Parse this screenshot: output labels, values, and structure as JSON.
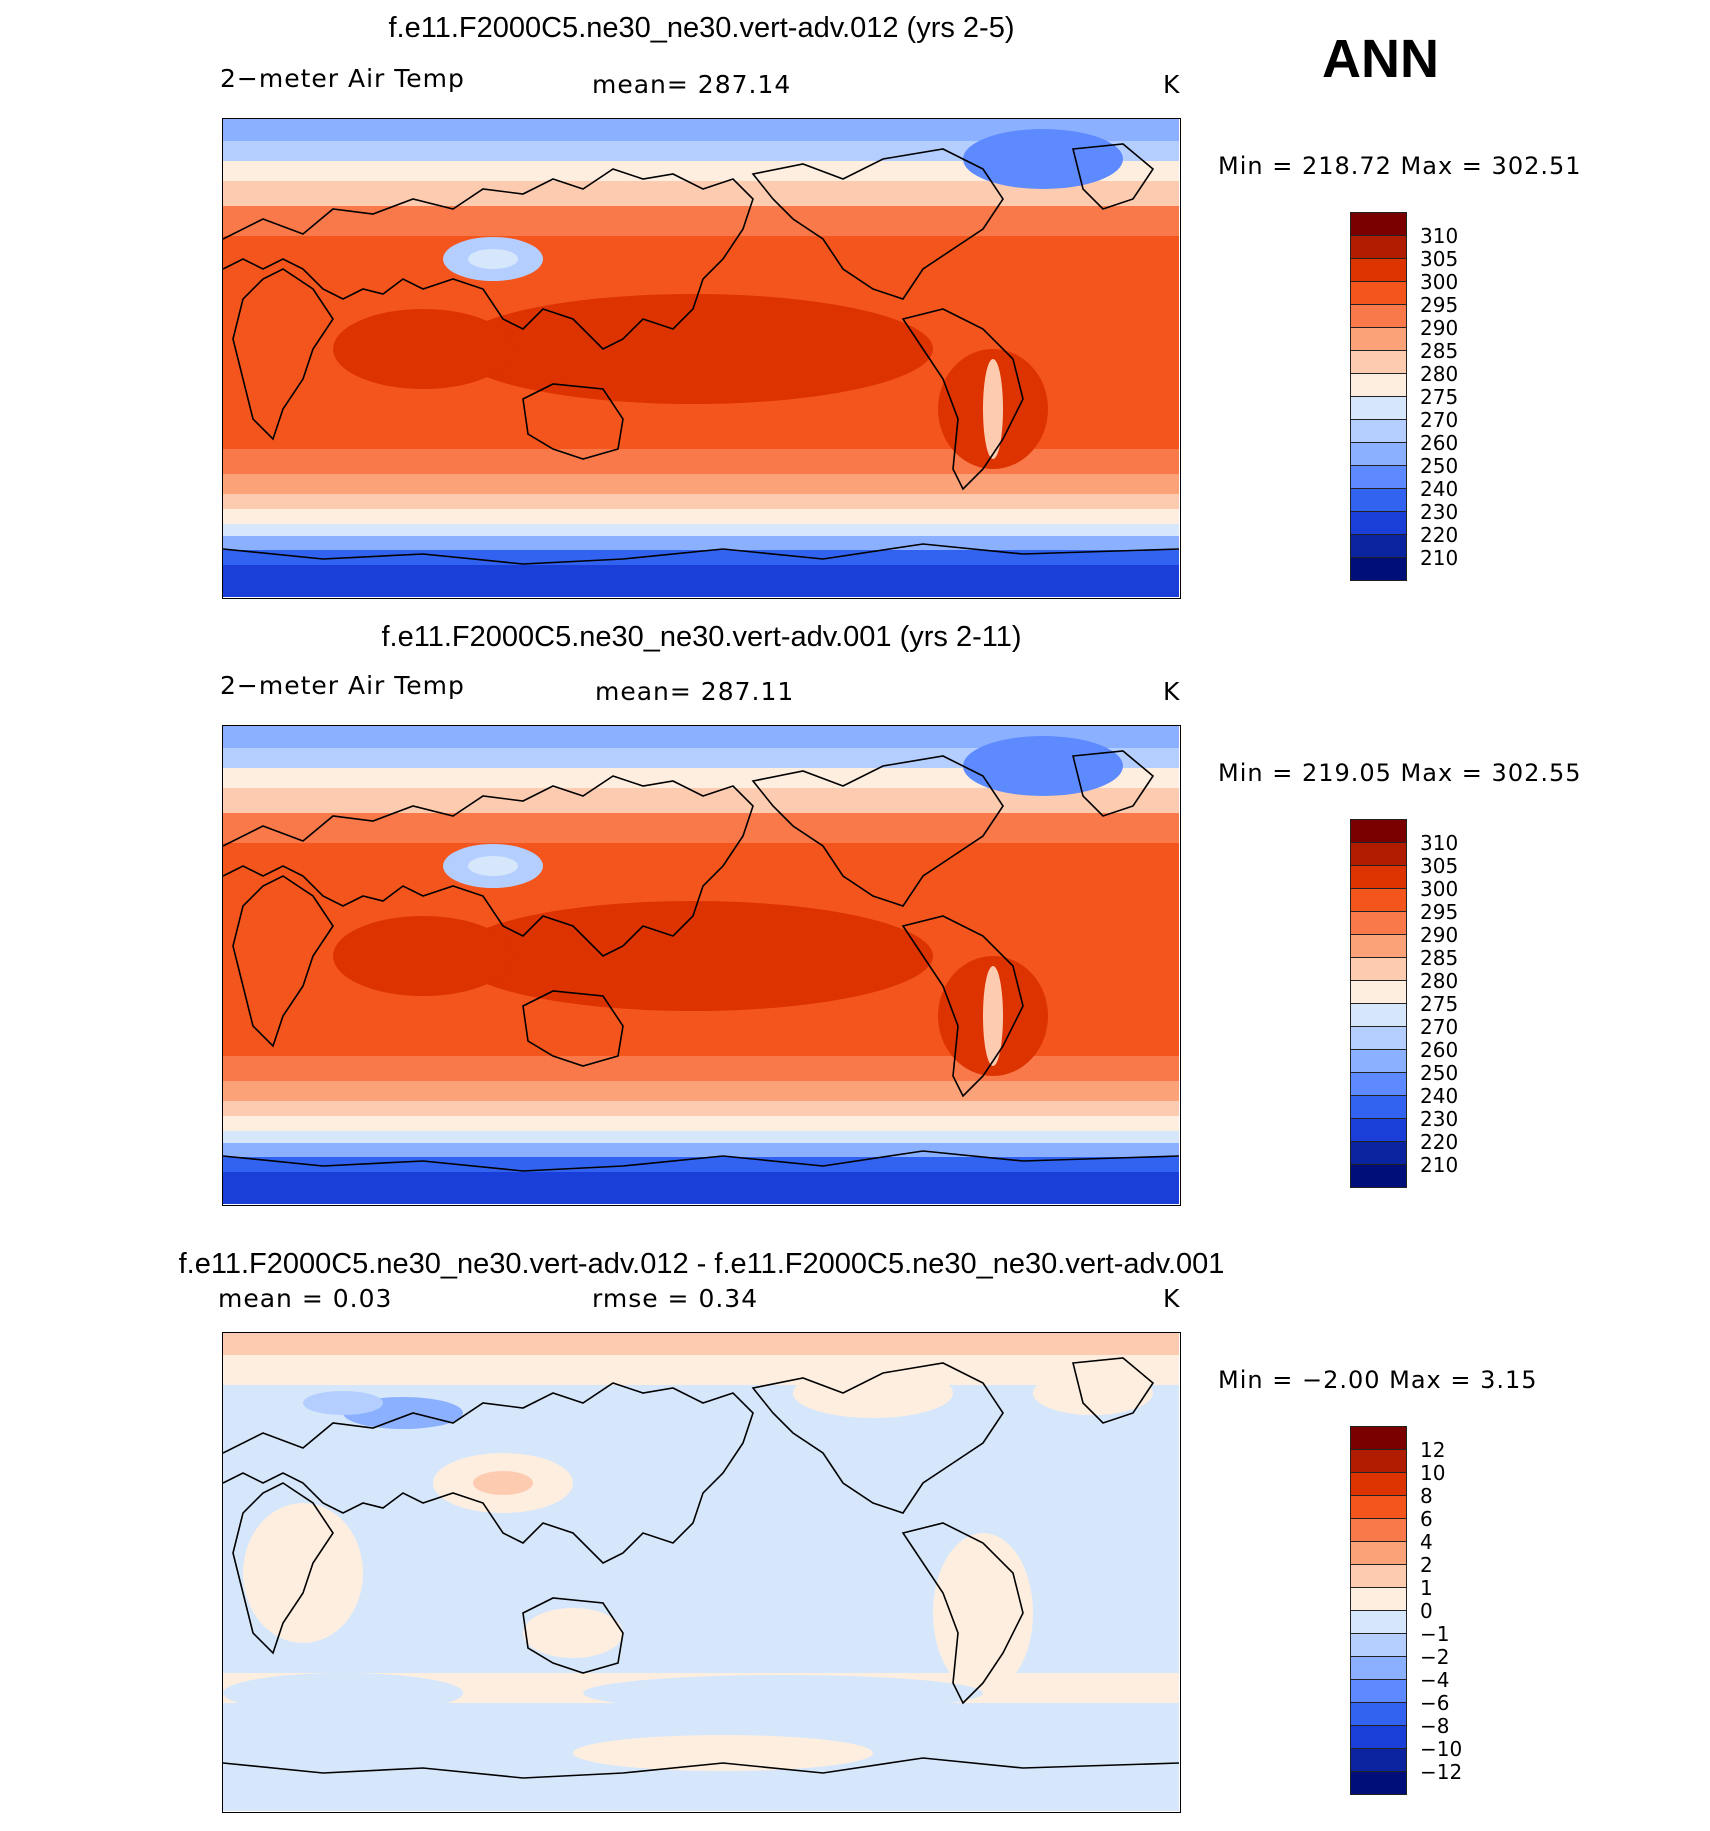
{
  "season": "ANN",
  "panels": [
    {
      "id": "p1",
      "title": "f.e11.F2000C5.ne30_ne30.vert-adv.012 (yrs 2-5)",
      "left_label": "2−meter Air Temp",
      "center_label": "mean=  287.14",
      "units": "K",
      "minmax": "Min  =  218.72  Max  =  302.51",
      "colorbar_labels": [
        "310",
        "305",
        "300",
        "295",
        "290",
        "285",
        "280",
        "275",
        "270",
        "260",
        "250",
        "240",
        "230",
        "220",
        "210"
      ]
    },
    {
      "id": "p2",
      "title": "f.e11.F2000C5.ne30_ne30.vert-adv.001 (yrs 2-11)",
      "left_label": "2−meter Air Temp",
      "center_label": "mean=  287.11",
      "units": "K",
      "minmax": "Min  =  219.05  Max  =  302.55",
      "colorbar_labels": [
        "310",
        "305",
        "300",
        "295",
        "290",
        "285",
        "280",
        "275",
        "270",
        "260",
        "250",
        "240",
        "230",
        "220",
        "210"
      ]
    },
    {
      "id": "p3",
      "title": "f.e11.F2000C5.ne30_ne30.vert-adv.012 - f.e11.F2000C5.ne30_ne30.vert-adv.001",
      "left_label": "mean  =     0.03",
      "center_label": "rmse  =     0.34",
      "units": "K",
      "minmax": "Min  =    −2.00  Max  =      3.15",
      "colorbar_labels": [
        "12",
        "10",
        "8",
        "6",
        "4",
        "2",
        "1",
        "0",
        "−1",
        "−2",
        "−4",
        "−6",
        "−8",
        "−10",
        "−12"
      ]
    }
  ],
  "colors": {
    "palette": [
      "#7a0000",
      "#b01c00",
      "#dd3300",
      "#f4551d",
      "#f9794a",
      "#fca279",
      "#fdccb0",
      "#fdeee0",
      "#d6e7fb",
      "#b3ceff",
      "#8bb0ff",
      "#5e8aff",
      "#3262f0",
      "#1a3fd8",
      "#0a24a0",
      "#000e7a"
    ],
    "land_outline": "#000000"
  }
}
